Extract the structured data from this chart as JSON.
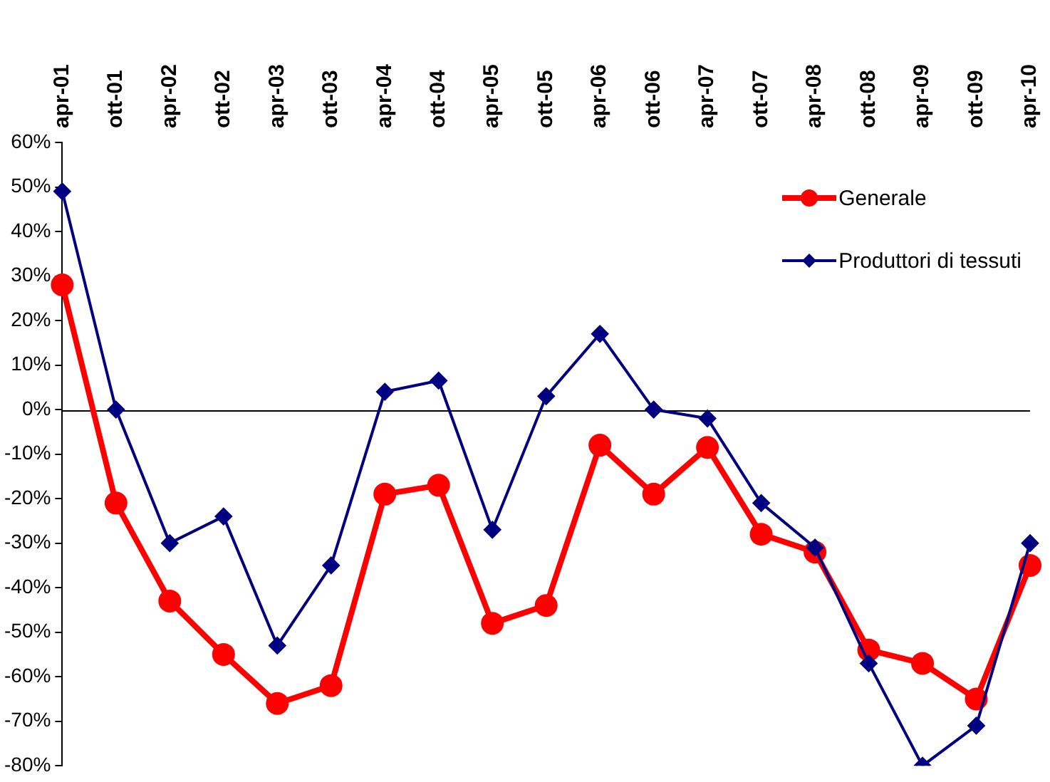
{
  "chart_data": {
    "type": "line",
    "categories": [
      "apr-01",
      "ott-01",
      "apr-02",
      "ott-02",
      "apr-03",
      "ott-03",
      "apr-04",
      "ott-04",
      "apr-05",
      "ott-05",
      "apr-06",
      "ott-06",
      "apr-07",
      "ott-07",
      "apr-08",
      "ott-08",
      "apr-09",
      "ott-09",
      "apr-10"
    ],
    "series": [
      {
        "name": "Generale",
        "color": "#ff0000",
        "marker": "circle",
        "values": [
          28,
          -21,
          -43,
          -55,
          -66,
          -62,
          -19,
          -17,
          -48,
          -44,
          -8,
          -19,
          -8.5,
          -28,
          -32,
          -54,
          -57,
          -65,
          -35
        ]
      },
      {
        "name": "Produttori di tessuti",
        "color": "#000080",
        "marker": "diamond",
        "values": [
          49,
          0,
          -30,
          -24,
          -53,
          -35,
          4,
          6.5,
          -27,
          3,
          17,
          0,
          -2,
          -21,
          -31,
          -57,
          -80,
          -71,
          -30
        ]
      }
    ],
    "ylim": [
      -80,
      60
    ],
    "yticks": [
      {
        "value": -80,
        "label": "-80%"
      },
      {
        "value": -70,
        "label": "-70%"
      },
      {
        "value": -60,
        "label": "-60%"
      },
      {
        "value": -50,
        "label": "-50%"
      },
      {
        "value": -40,
        "label": "-40%"
      },
      {
        "value": -30,
        "label": "-30%"
      },
      {
        "value": -20,
        "label": "-20%"
      },
      {
        "value": -10,
        "label": "-10%"
      },
      {
        "value": 0,
        "label": "0%"
      },
      {
        "value": 10,
        "label": "10%"
      },
      {
        "value": 20,
        "label": "20%"
      },
      {
        "value": 30,
        "label": "30%"
      },
      {
        "value": 40,
        "label": "40%"
      },
      {
        "value": 50,
        "label": "50%"
      },
      {
        "value": 60,
        "label": "60%"
      }
    ],
    "grid": false,
    "ref_lines": [
      {
        "axis": "y",
        "value": 0,
        "color": "#000000"
      }
    ],
    "legend": "top right",
    "line_style": "solid"
  }
}
